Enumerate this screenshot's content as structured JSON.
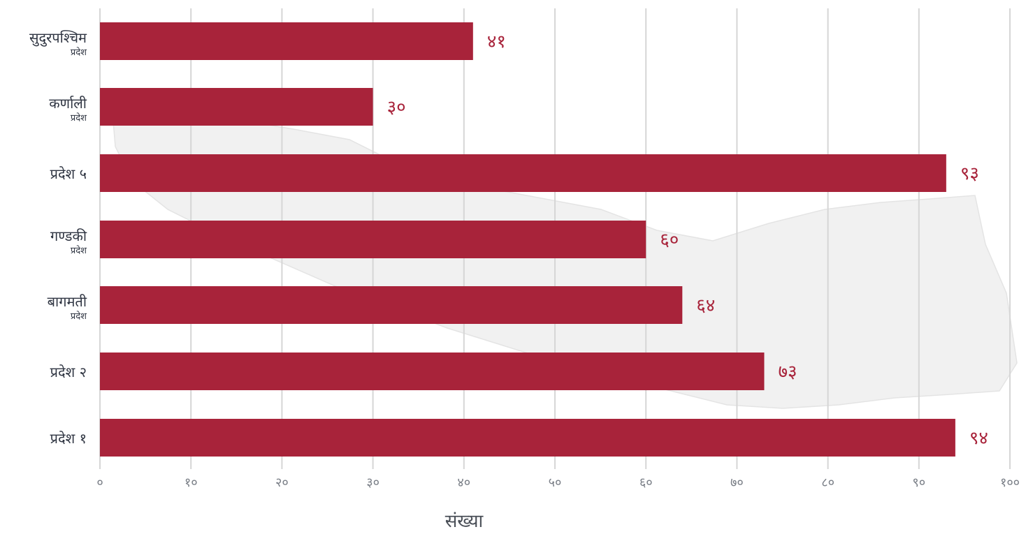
{
  "chart_data": {
    "type": "bar",
    "orientation": "horizontal",
    "categories": [
      {
        "label": "सुदुरपश्चिम",
        "sub": "प्रदेश"
      },
      {
        "label": "कर्णाली",
        "sub": "प्रदेश"
      },
      {
        "label": "प्रदेश ५",
        "sub": ""
      },
      {
        "label": "गण्डकी",
        "sub": "प्रदेश"
      },
      {
        "label": "बागमती",
        "sub": "प्रदेश"
      },
      {
        "label": "प्रदेश २",
        "sub": ""
      },
      {
        "label": "प्रदेश १",
        "sub": ""
      }
    ],
    "values": [
      41,
      30,
      93,
      60,
      64,
      73,
      94
    ],
    "value_labels": [
      "४१",
      "३०",
      "९३",
      "६०",
      "६४",
      "७३",
      "९४"
    ],
    "xlim": [
      0,
      100
    ],
    "xticks": [
      0,
      10,
      20,
      30,
      40,
      50,
      60,
      70,
      80,
      90,
      100
    ],
    "xtick_labels": [
      "०",
      "१०",
      "२०",
      "३०",
      "४०",
      "५०",
      "६०",
      "७०",
      "८०",
      "९०",
      "१००"
    ],
    "xlabel": "संख्या",
    "ylabel": "",
    "title": "",
    "grid": "vertical",
    "bar_color": "#a8233a",
    "value_label_color": "#a8233a",
    "background_watermark": "map of Nepal"
  }
}
